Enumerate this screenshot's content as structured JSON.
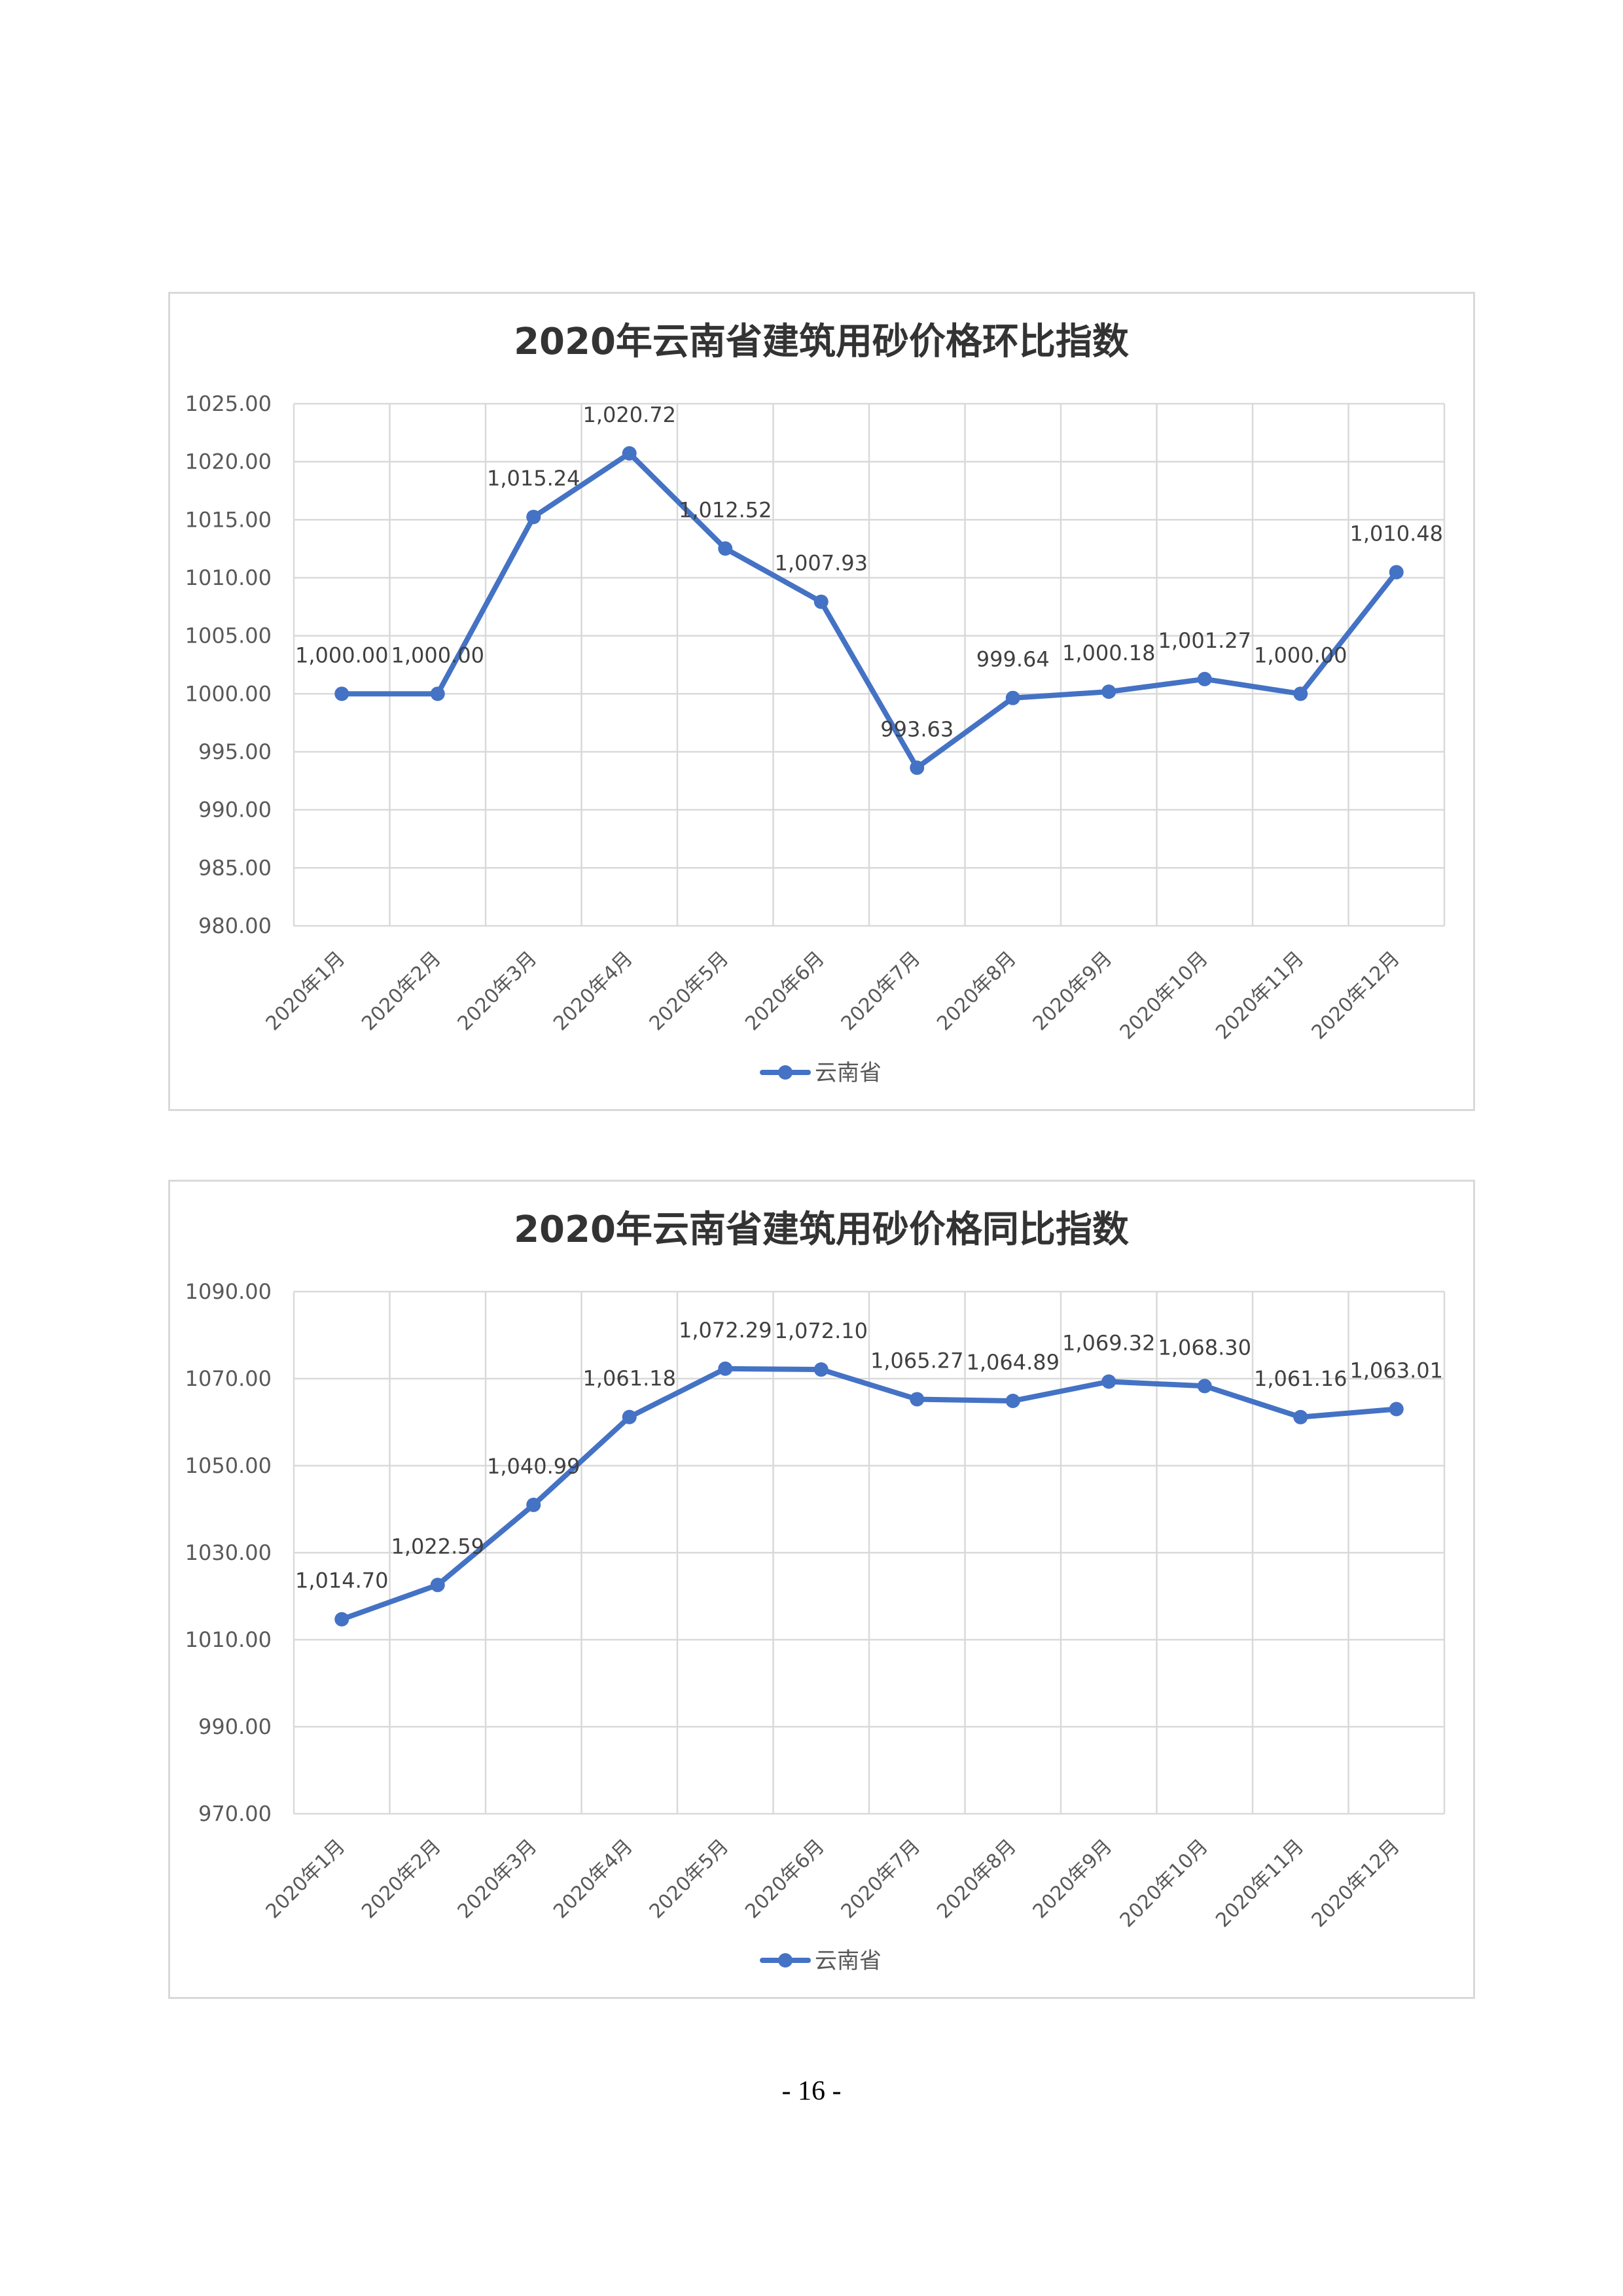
{
  "page": {
    "number": "- 16 -"
  },
  "chart_data": [
    {
      "type": "line",
      "title": "2020年云南省建筑用砂价格环比指数",
      "categories": [
        "2020年1月",
        "2020年2月",
        "2020年3月",
        "2020年4月",
        "2020年5月",
        "2020年6月",
        "2020年7月",
        "2020年8月",
        "2020年9月",
        "2020年10月",
        "2020年11月",
        "2020年12月"
      ],
      "series": [
        {
          "name": "云南省",
          "values": [
            1000.0,
            1000.0,
            1015.24,
            1020.72,
            1012.52,
            1007.93,
            993.63,
            999.64,
            1000.18,
            1001.27,
            1000.0,
            1010.48
          ],
          "labels": [
            "1,000.00",
            "1,000.00",
            "1,015.24",
            "1,020.72",
            "1,012.52",
            "1,007.93",
            "993.63",
            "999.64",
            "1,000.18",
            "1,001.27",
            "1,000.00",
            "1,010.48"
          ]
        }
      ],
      "ylim": [
        980,
        1025
      ],
      "yticks": [
        980,
        985,
        990,
        995,
        1000,
        1005,
        1010,
        1015,
        1020,
        1025
      ],
      "ytick_labels": [
        "980.00",
        "985.00",
        "990.00",
        "995.00",
        "1000.00",
        "1005.00",
        "1010.00",
        "1015.00",
        "1020.00",
        "1025.00"
      ],
      "xlabel": "",
      "ylabel": "",
      "grid": true,
      "legend": "bottom",
      "color": "#4472c4"
    },
    {
      "type": "line",
      "title": "2020年云南省建筑用砂价格同比指数",
      "categories": [
        "2020年1月",
        "2020年2月",
        "2020年3月",
        "2020年4月",
        "2020年5月",
        "2020年6月",
        "2020年7月",
        "2020年8月",
        "2020年9月",
        "2020年10月",
        "2020年11月",
        "2020年12月"
      ],
      "series": [
        {
          "name": "云南省",
          "values": [
            1014.7,
            1022.59,
            1040.99,
            1061.18,
            1072.29,
            1072.1,
            1065.27,
            1064.89,
            1069.32,
            1068.3,
            1061.16,
            1063.01
          ],
          "labels": [
            "1,014.70",
            "1,022.59",
            "1,040.99",
            "1,061.18",
            "1,072.29",
            "1,072.10",
            "1,065.27",
            "1,064.89",
            "1,069.32",
            "1,068.30",
            "1,061.16",
            "1,063.01"
          ]
        }
      ],
      "ylim": [
        970,
        1090
      ],
      "yticks": [
        970,
        990,
        1010,
        1030,
        1050,
        1070,
        1090
      ],
      "ytick_labels": [
        "970.00",
        "990.00",
        "1010.00",
        "1030.00",
        "1050.00",
        "1070.00",
        "1090.00"
      ],
      "xlabel": "",
      "ylabel": "",
      "grid": true,
      "legend": "bottom",
      "color": "#4472c4"
    }
  ]
}
